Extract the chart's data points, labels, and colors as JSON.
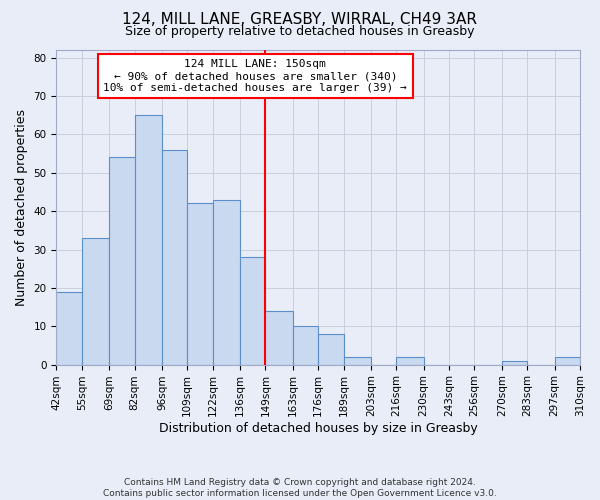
{
  "title": "124, MILL LANE, GREASBY, WIRRAL, CH49 3AR",
  "subtitle": "Size of property relative to detached houses in Greasby",
  "xlabel": "Distribution of detached houses by size in Greasby",
  "ylabel": "Number of detached properties",
  "bar_color": "#c9d9f0",
  "bar_edge_color": "#5b8fc9",
  "background_color": "#e8edf8",
  "grid_color": "#c8d0e0",
  "vline_x": 149,
  "vline_color": "red",
  "bin_edges": [
    42,
    55,
    69,
    82,
    96,
    109,
    122,
    136,
    149,
    163,
    176,
    189,
    203,
    216,
    230,
    243,
    256,
    270,
    283,
    297,
    310
  ],
  "counts": [
    19,
    33,
    54,
    65,
    56,
    42,
    43,
    28,
    14,
    10,
    8,
    2,
    0,
    2,
    0,
    0,
    0,
    1,
    0,
    2
  ],
  "tick_labels": [
    "42sqm",
    "55sqm",
    "69sqm",
    "82sqm",
    "96sqm",
    "109sqm",
    "122sqm",
    "136sqm",
    "149sqm",
    "163sqm",
    "176sqm",
    "189sqm",
    "203sqm",
    "216sqm",
    "230sqm",
    "243sqm",
    "256sqm",
    "270sqm",
    "283sqm",
    "297sqm",
    "310sqm"
  ],
  "yticks": [
    0,
    10,
    20,
    30,
    40,
    50,
    60,
    70,
    80
  ],
  "ylim": [
    0,
    82
  ],
  "annotation_title": "124 MILL LANE: 150sqm",
  "annotation_line1": "← 90% of detached houses are smaller (340)",
  "annotation_line2": "10% of semi-detached houses are larger (39) →",
  "footer1": "Contains HM Land Registry data © Crown copyright and database right 2024.",
  "footer2": "Contains public sector information licensed under the Open Government Licence v3.0.",
  "title_fontsize": 11,
  "subtitle_fontsize": 9,
  "xlabel_fontsize": 9,
  "ylabel_fontsize": 9,
  "tick_fontsize": 7.5,
  "annot_fontsize": 8
}
